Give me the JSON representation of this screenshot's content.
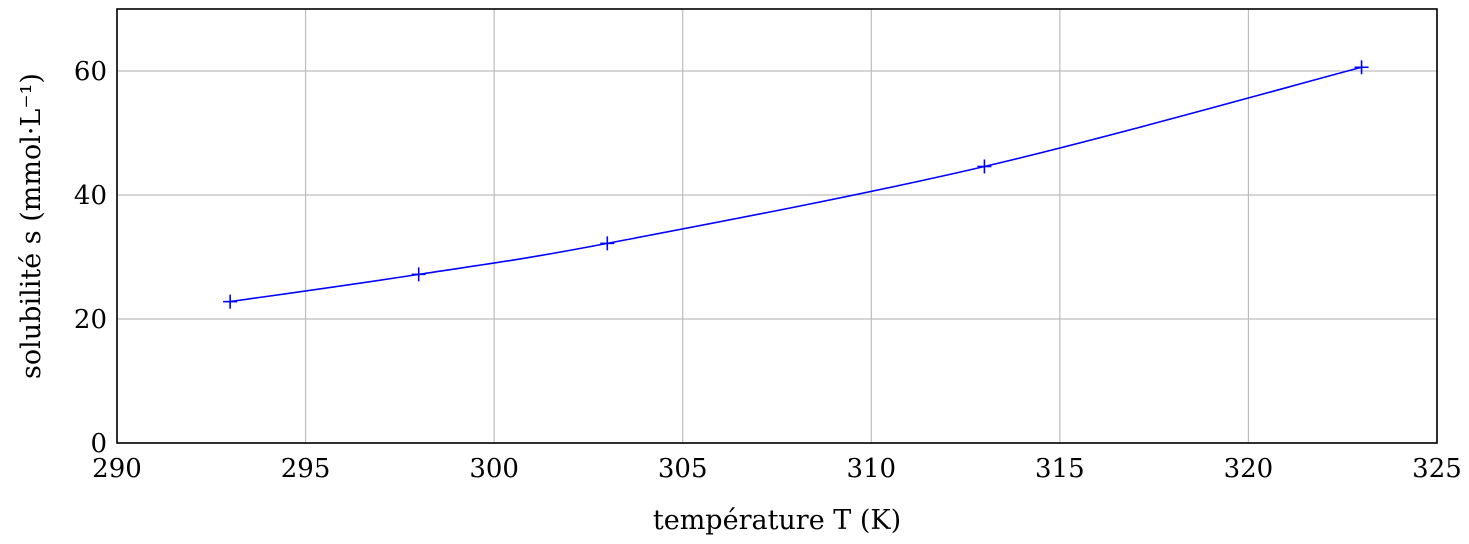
{
  "chart_data": {
    "type": "line",
    "title": "",
    "xlabel": "température T (K)",
    "ylabel": "solubilité s (mmol·L⁻¹)",
    "xlim": [
      290,
      325
    ],
    "ylim": [
      0,
      70
    ],
    "xticks": [
      290,
      295,
      300,
      305,
      310,
      315,
      320,
      325
    ],
    "yticks": [
      0,
      20,
      40,
      60
    ],
    "grid": true,
    "series": [
      {
        "color": "#0000ff",
        "marker": "plus",
        "smooth": true,
        "x": [
          293,
          298,
          303,
          313,
          323
        ],
        "y": [
          22.8,
          27.2,
          32.2,
          44.6,
          60.6
        ]
      }
    ]
  }
}
